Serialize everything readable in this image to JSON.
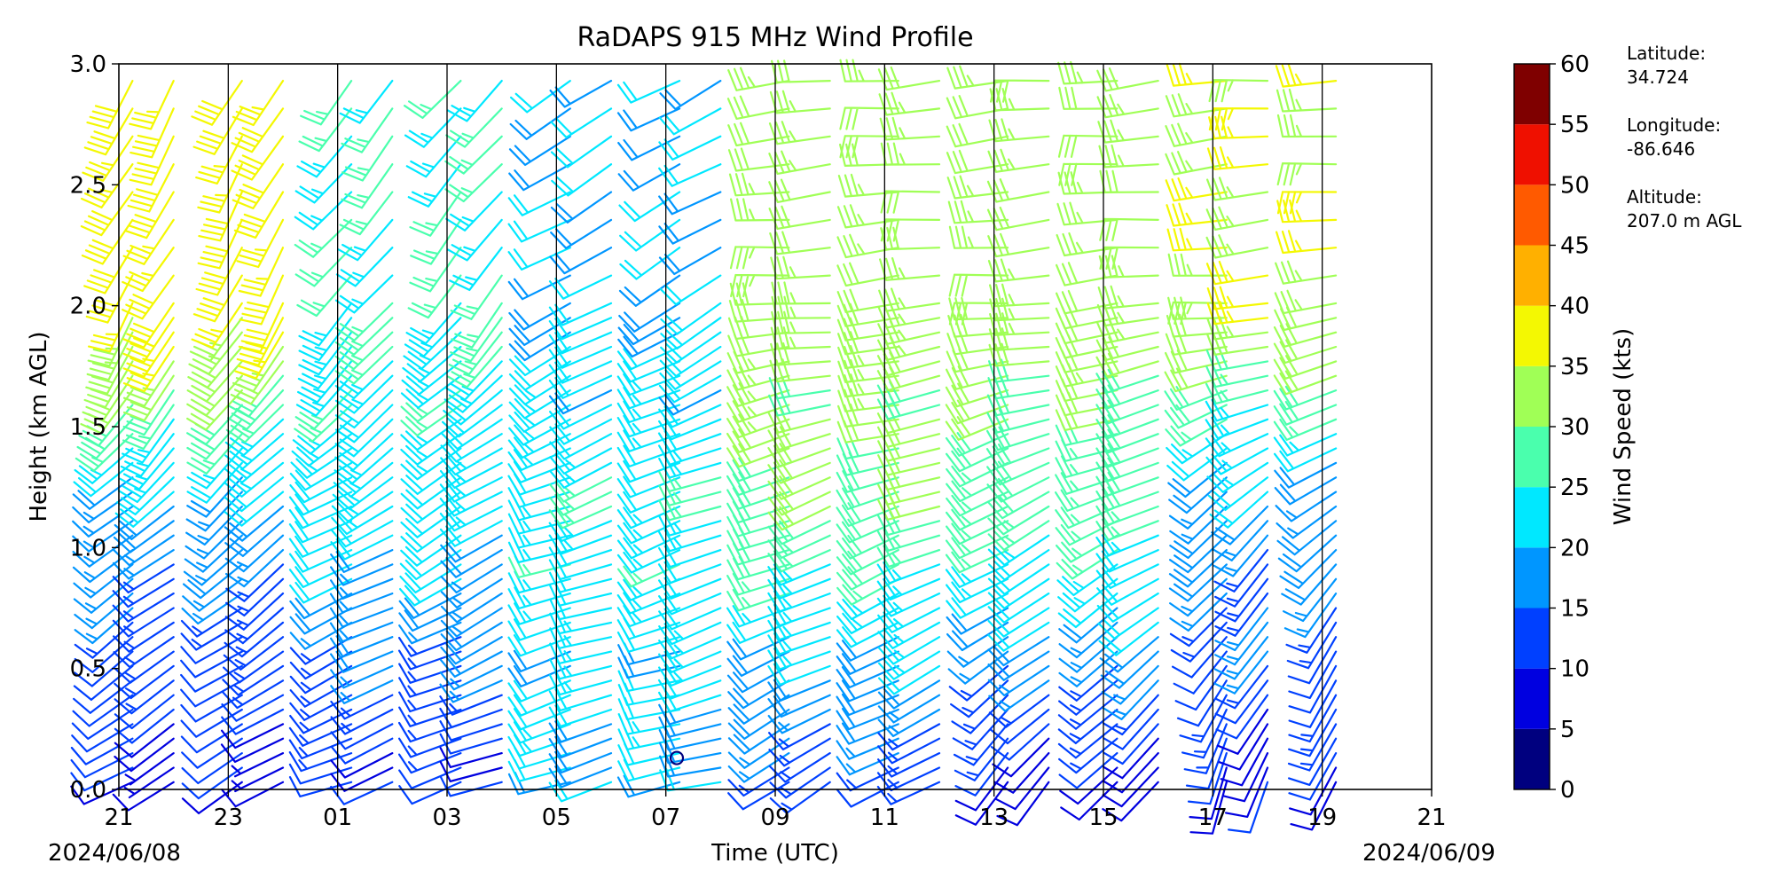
{
  "chart_data": {
    "type": "wind-barb",
    "title": "RaDAPS 915 MHz Wind Profile",
    "xlabel": "Time (UTC)",
    "ylabel": "Height (km AGL)",
    "x_ticks": [
      "21",
      "23",
      "01",
      "03",
      "05",
      "07",
      "09",
      "11",
      "13",
      "15",
      "17",
      "19",
      "21"
    ],
    "x_tick_hours": [
      0,
      2,
      4,
      6,
      8,
      10,
      12,
      14,
      16,
      18,
      20,
      22,
      24
    ],
    "x_range_hours": [
      0,
      24
    ],
    "date_start": "2024/06/08",
    "date_end": "2024/06/09",
    "y_ticks": [
      "0.0",
      "0.5",
      "1.0",
      "1.5",
      "2.0",
      "2.5",
      "3.0"
    ],
    "y_range": [
      0,
      3
    ],
    "vertical_gridlines_hours": [
      2,
      4,
      6,
      8,
      10,
      12,
      14,
      16,
      18,
      20,
      22
    ],
    "colorbar": {
      "label": "Wind Speed (kts)",
      "ticks": [
        "0",
        "5",
        "10",
        "15",
        "20",
        "25",
        "30",
        "35",
        "40",
        "45",
        "50",
        "55",
        "60"
      ],
      "range": [
        0,
        60
      ],
      "step": 5,
      "colors": [
        "#00007f",
        "#0000e0",
        "#0040ff",
        "#0096ff",
        "#00e8ff",
        "#4affad",
        "#a0ff56",
        "#f4f802",
        "#ffb000",
        "#ff5a00",
        "#ef1000",
        "#7f0000"
      ]
    },
    "station": {
      "latitude_label": "Latitude:",
      "latitude": "34.724",
      "longitude_label": "Longitude:",
      "longitude": "-86.646",
      "altitude_label": "Altitude:",
      "altitude": "207.0 m AGL"
    },
    "barb_columns_hours": [
      0.25,
      1.0,
      2.25,
      3.0,
      4.25,
      5.0,
      6.25,
      7.0,
      8.25,
      9.0,
      10.25,
      11.0,
      12.25,
      13.0,
      14.25,
      15.0,
      16.25,
      17.0,
      18.25,
      19.0,
      20.25,
      21.0,
      22.25
    ],
    "profiles": [
      {
        "hour_from": 0,
        "hour_to": 4,
        "low": {
          "speed": 8,
          "dir": 240
        },
        "mid": {
          "speed": 18,
          "dir": 230
        },
        "high": {
          "speed": 38,
          "dir": 210
        }
      },
      {
        "hour_from": 4,
        "hour_to": 8,
        "low": {
          "speed": 10,
          "dir": 250
        },
        "mid": {
          "speed": 22,
          "dir": 240
        },
        "high": {
          "speed": 25,
          "dir": 220
        }
      },
      {
        "hour_from": 8,
        "hour_to": 12,
        "low": {
          "speed": 20,
          "dir": 255
        },
        "mid": {
          "speed": 24,
          "dir": 250
        },
        "high": {
          "speed": 20,
          "dir": 240
        }
      },
      {
        "hour_from": 12,
        "hour_to": 16,
        "low": {
          "speed": 12,
          "dir": 240
        },
        "mid": {
          "speed": 30,
          "dir": 250
        },
        "high": {
          "speed": 33,
          "dir": 265
        }
      },
      {
        "hour_from": 16,
        "hour_to": 20,
        "low": {
          "speed": 8,
          "dir": 220
        },
        "mid": {
          "speed": 27,
          "dir": 245
        },
        "high": {
          "speed": 33,
          "dir": 265
        }
      },
      {
        "hour_from": 20,
        "hour_to": 24,
        "low": {
          "speed": 9,
          "dir": 200
        },
        "mid": {
          "speed": 18,
          "dir": 230
        },
        "high": {
          "speed": 35,
          "dir": 265
        }
      }
    ]
  }
}
